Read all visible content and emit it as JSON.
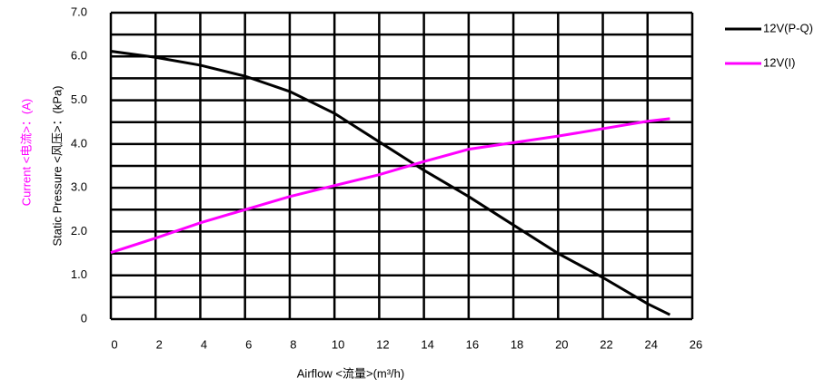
{
  "chart_data": {
    "type": "line",
    "x_label": "Airflow <流量>(m³/h)",
    "y_label": "Static  Pressure <风压>：(kPa)",
    "y_label_2": "Current <电流>：(A)",
    "x": [
      0,
      2,
      4,
      6,
      8,
      10,
      12,
      14,
      16,
      18,
      20,
      22,
      24,
      25
    ],
    "series": [
      {
        "name": "12V(P-Q)",
        "color": "#000000",
        "values": [
          6.12,
          5.98,
          5.8,
          5.55,
          5.2,
          4.7,
          4.05,
          3.4,
          2.8,
          2.15,
          1.5,
          0.95,
          0.35,
          0.1
        ]
      },
      {
        "name": "12V(I)",
        "color": "#ff00ff",
        "values": [
          1.52,
          1.85,
          2.2,
          2.5,
          2.8,
          3.05,
          3.3,
          3.6,
          3.88,
          4.03,
          4.18,
          4.35,
          4.52,
          4.58
        ]
      }
    ],
    "xlim": [
      0,
      26
    ],
    "xticks": [
      0,
      2,
      4,
      6,
      8,
      10,
      12,
      14,
      16,
      18,
      20,
      22,
      24,
      26
    ],
    "ylim": [
      0,
      7
    ],
    "yticks": [
      0,
      {
        "value": 1,
        "label": "1.0"
      },
      {
        "value": 2,
        "label": "2.0"
      },
      {
        "value": 3,
        "label": "3.0"
      },
      {
        "value": 4,
        "label": "4.0"
      },
      {
        "value": 5,
        "label": "5.0"
      },
      {
        "value": 6,
        "label": "6.0"
      },
      {
        "value": 7,
        "label": "7.0"
      }
    ],
    "y_minor_gridlines": [
      0.5,
      1.5,
      2.5,
      3.5,
      4.5,
      5.5,
      6.5
    ],
    "grid": true
  }
}
